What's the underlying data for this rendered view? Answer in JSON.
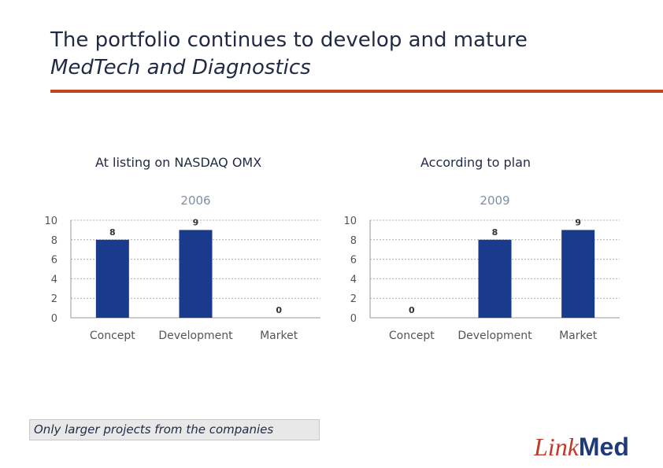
{
  "slide": {
    "title_line1": "The portfolio continues to develop and mature",
    "title_line2": "MedTech and Diagnostics",
    "caption_left": "At listing on NASDAQ OMX",
    "caption_right": "According to plan",
    "footnote": "Only larger projects from the companies",
    "logo_part1": "Link",
    "logo_part2": "Med"
  },
  "colors": {
    "accent_rule": "#c0461e",
    "bar": "#1a3a8c",
    "chart_title": "#7f8fa6",
    "logo_link": "#c0392b",
    "logo_med": "#1f3a7a"
  },
  "chart_data": [
    {
      "type": "bar",
      "title": "2006",
      "categories": [
        "Concept",
        "Development",
        "Market"
      ],
      "values": [
        8,
        9,
        0
      ],
      "ylim": [
        0,
        10
      ],
      "yticks": [
        0,
        2,
        4,
        6,
        8,
        10
      ],
      "grid": true,
      "data_labels": true
    },
    {
      "type": "bar",
      "title": "2009",
      "categories": [
        "Concept",
        "Development",
        "Market"
      ],
      "values": [
        0,
        8,
        9
      ],
      "ylim": [
        0,
        10
      ],
      "yticks": [
        0,
        2,
        4,
        6,
        8,
        10
      ],
      "grid": true,
      "data_labels": true
    }
  ]
}
